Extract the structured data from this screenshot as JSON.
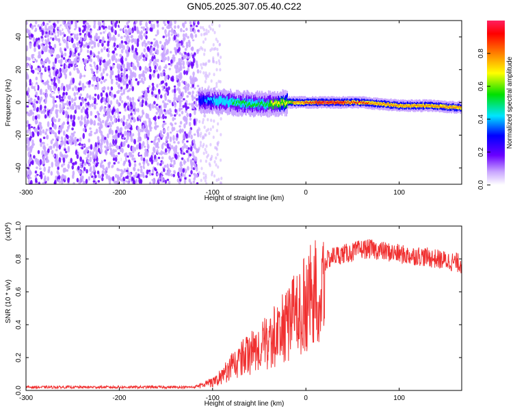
{
  "title": "GN05.2025.307.05.40.C22",
  "chart_data": [
    {
      "type": "heatmap",
      "xlabel": "Height of straight line (km)",
      "ylabel": "Frequency (Hz)",
      "xlim": [
        -300,
        167
      ],
      "ylim": [
        -50,
        50
      ],
      "xticks": [
        -300,
        -200,
        -100,
        0,
        100
      ],
      "yticks": [
        -40,
        -20,
        0,
        20,
        40
      ],
      "colorbar": {
        "label": "Normalized spectral amplitude",
        "range": [
          0,
          1
        ],
        "ticks": [
          "0.0",
          "0.2",
          "0.4",
          "0.6",
          "0.8"
        ],
        "colors": [
          "#ffffff",
          "#c9a6ff",
          "#6a00ff",
          "#0000ff",
          "#00e5ff",
          "#00e000",
          "#ffff00",
          "#ff8000",
          "#ff0000",
          "#ff2060"
        ]
      },
      "noise_region_x": [
        -300,
        -115
      ],
      "ridge": [
        {
          "x": -115,
          "f": 1,
          "amp": 0.35
        },
        {
          "x": -100,
          "f": 1,
          "amp": 0.45
        },
        {
          "x": -80,
          "f": 0,
          "amp": 0.5
        },
        {
          "x": -60,
          "f": -1,
          "amp": 0.55
        },
        {
          "x": -40,
          "f": -1,
          "amp": 0.6
        },
        {
          "x": -20,
          "f": 0,
          "amp": 0.7
        },
        {
          "x": 0,
          "f": 0,
          "amp": 0.85
        },
        {
          "x": 20,
          "f": 0,
          "amp": 0.95
        },
        {
          "x": 40,
          "f": 0,
          "amp": 0.9
        },
        {
          "x": 60,
          "f": 0,
          "amp": 0.85
        },
        {
          "x": 80,
          "f": -1,
          "amp": 0.8
        },
        {
          "x": 100,
          "f": -2,
          "amp": 0.75
        },
        {
          "x": 130,
          "f": -2,
          "amp": 0.75
        },
        {
          "x": 160,
          "f": -3,
          "amp": 0.8
        }
      ]
    },
    {
      "type": "line",
      "xlabel": "Height of straight line (km)",
      "ylabel": "SNR (10 * v/v)",
      "scale_label": "(x10",
      "scale_exp": "4",
      "xlim": [
        -300,
        167
      ],
      "ylim": [
        0,
        1.0
      ],
      "xticks": [
        -300,
        -200,
        -100,
        0,
        100
      ],
      "yticks": [
        "0.0",
        "0.2",
        "0.4",
        "0.6",
        "0.8",
        "1.0"
      ],
      "color": "#f03030",
      "series": [
        {
          "x": [
            -300,
            -250,
            -200,
            -150,
            -120,
            -110,
            -100,
            -90,
            -80,
            -70,
            -60,
            -50,
            -40,
            -30,
            -20,
            -10,
            0,
            10,
            20,
            30,
            40,
            50,
            60,
            70,
            80,
            90,
            100,
            110,
            120,
            130,
            140,
            150,
            160,
            167
          ],
          "values": [
            0.02,
            0.02,
            0.02,
            0.02,
            0.02,
            0.04,
            0.06,
            0.1,
            0.17,
            0.22,
            0.27,
            0.3,
            0.35,
            0.4,
            0.48,
            0.55,
            0.62,
            0.7,
            0.78,
            0.82,
            0.83,
            0.84,
            0.86,
            0.86,
            0.85,
            0.84,
            0.83,
            0.82,
            0.82,
            0.81,
            0.8,
            0.79,
            0.78,
            0.77
          ]
        }
      ]
    }
  ]
}
